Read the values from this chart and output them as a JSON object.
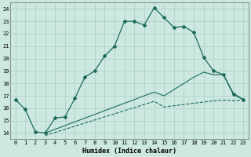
{
  "xlabel": "Humidex (Indice chaleur)",
  "bg_color": "#cce8e0",
  "line_color": "#1a6b5a",
  "grid_color": "#aaccc4",
  "x_ticks": [
    0,
    1,
    2,
    3,
    4,
    5,
    6,
    7,
    8,
    9,
    10,
    11,
    12,
    13,
    14,
    15,
    16,
    17,
    18,
    19,
    20,
    21,
    22,
    23
  ],
  "y_ticks": [
    14,
    15,
    16,
    17,
    18,
    19,
    20,
    21,
    22,
    23,
    24
  ],
  "xlim": [
    -0.5,
    23.5
  ],
  "ylim": [
    13.5,
    24.5
  ],
  "line1_x": [
    0,
    1,
    2,
    3,
    4,
    5,
    6,
    7,
    8,
    9,
    10,
    11,
    12,
    13,
    14,
    15,
    16,
    17,
    18,
    19,
    20,
    21,
    22,
    23
  ],
  "line1_y": [
    16.7,
    15.9,
    14.1,
    14.0,
    15.2,
    15.3,
    16.8,
    18.5,
    19.0,
    20.2,
    21.0,
    23.0,
    23.0,
    22.7,
    24.1,
    23.3,
    22.5,
    22.6,
    22.1,
    20.1,
    19.0,
    18.7,
    17.1,
    16.7
  ],
  "line2_x": [
    3,
    4,
    5,
    6,
    7,
    8,
    9,
    10,
    11,
    12,
    13,
    14,
    15,
    16,
    17,
    18,
    19,
    20,
    21,
    22,
    23
  ],
  "line2_y": [
    14.0,
    14.3,
    14.6,
    14.9,
    15.2,
    15.5,
    15.8,
    16.1,
    16.4,
    16.7,
    17.0,
    17.3,
    17.0,
    17.5,
    18.0,
    18.5,
    18.9,
    18.7,
    18.7,
    17.2,
    16.7
  ],
  "line3_x": [
    3,
    4,
    5,
    6,
    7,
    8,
    9,
    10,
    11,
    12,
    13,
    14,
    15,
    16,
    17,
    18,
    19,
    20,
    21,
    22,
    23
  ],
  "line3_y": [
    13.8,
    14.05,
    14.3,
    14.55,
    14.8,
    15.05,
    15.3,
    15.55,
    15.8,
    16.05,
    16.3,
    16.55,
    16.1,
    16.2,
    16.3,
    16.4,
    16.5,
    16.6,
    16.65,
    16.6,
    16.65
  ]
}
